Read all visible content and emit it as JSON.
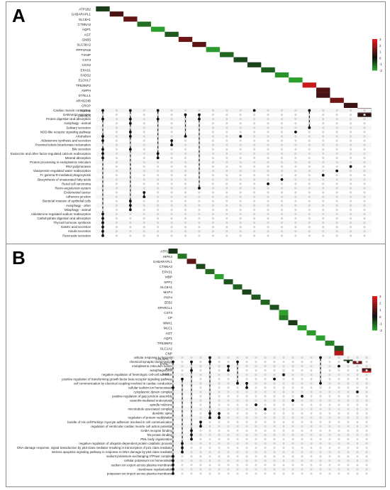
{
  "colors": {
    "high": "#e41a1c",
    "mid": "#111111",
    "low": "#2ca02c",
    "dot_off": "#d3d3d3",
    "dot_on": "#111111",
    "band": "#f4f4f4"
  },
  "legend": {
    "ticks": [
      "3",
      "2",
      "1",
      "0",
      "-1",
      "-2"
    ]
  },
  "chart_data": [
    {
      "type": "heatmap",
      "panel_label": "A",
      "legend_ticks": [
        3,
        2,
        1,
        0,
        -1,
        -2
      ],
      "genes": [
        "ATP1B2",
        "GABARAPL1",
        "SLC8A1",
        "CTNNA3",
        "AQP1",
        "AGT",
        "GNB5",
        "SLC38A2",
        "PPP1R1B",
        "TXNIP",
        "CST3",
        "COX2",
        "EPAS1",
        "FADS2",
        "ELOVL7",
        "TP53INP2",
        "AMPH",
        "DYNLL1",
        "ARHGDIB",
        "CRCP",
        "HSPH1",
        "DNAJC5"
      ],
      "heat_values": [
        -0.6,
        0.8,
        1.2,
        -1.3,
        -2.2,
        -1.0,
        1.3,
        1.1,
        -1.9,
        -1.2,
        -0.8,
        -0.7,
        -1.1,
        -1.8,
        -2.0,
        2.6,
        0.9,
        0.7,
        1.4,
        0.6,
        0.5,
        0.4
      ],
      "heat_columns": [
        0,
        1,
        2,
        3,
        4,
        5,
        6,
        7,
        8,
        9,
        10,
        11,
        12,
        13,
        14,
        15,
        16,
        16,
        17,
        18,
        19,
        19
      ],
      "terms": [
        "Cardiac muscle contraction",
        "GABAergic synapse",
        "Protein digestion and absorption",
        "Autophagy - animal",
        "Salivary secretion",
        "NOD-like receptor signaling pathway",
        "Alcoholism",
        "Aldosterone synthesis and secretion",
        "Proximal tubule bicarbonate reclamation",
        "Bile secretion",
        "Endocrine and other factor-regulated calcium reabsorption",
        "Mineral absorption",
        "Protein processing in endoplasmic reticulum",
        "RNA polymerases",
        "Vasopressin-regulated water reabsorption",
        "Fc gamma R-mediated phagocytosis",
        "Biosynthesis of unsaturated fatty acids",
        "Renal cell carcinoma",
        "Renin-angiotensin system",
        "Endometrial cancer",
        "Adherens junction",
        "Bacterial invasion of epithelial cells",
        "Autophagy - other",
        "Mitophagy - animal",
        "Aldosterone-regulated sodium reabsorption",
        "Carbohydrate digestion and absorption",
        "Thyroid hormone synthesis",
        "Gastric acid secretion",
        "Insulin secretion",
        "Pancreatic secretion"
      ],
      "n_columns": 20,
      "membership": [
        [
          0,
          0
        ],
        [
          0,
          2
        ],
        [
          0,
          4
        ],
        [
          0,
          11
        ],
        [
          0,
          15
        ],
        [
          1,
          6
        ],
        [
          1,
          7
        ],
        [
          2,
          0
        ],
        [
          2,
          2
        ],
        [
          2,
          4
        ],
        [
          2,
          7
        ],
        [
          3,
          2
        ],
        [
          3,
          20
        ],
        [
          4,
          15
        ],
        [
          5,
          2
        ],
        [
          5,
          14
        ],
        [
          6,
          0
        ],
        [
          6,
          2
        ],
        [
          6,
          6
        ],
        [
          6,
          10
        ],
        [
          7,
          0
        ],
        [
          7,
          5
        ],
        [
          8,
          5
        ],
        [
          9,
          0
        ],
        [
          9,
          2
        ],
        [
          10,
          0
        ],
        [
          10,
          4
        ],
        [
          11,
          0
        ],
        [
          11,
          4
        ],
        [
          12,
          20
        ],
        [
          13,
          18
        ],
        [
          14,
          17
        ],
        [
          15,
          16
        ],
        [
          16,
          13
        ],
        [
          17,
          12
        ],
        [
          18,
          7
        ],
        [
          19,
          3
        ],
        [
          20,
          3
        ],
        [
          21,
          2
        ],
        [
          22,
          2
        ],
        [
          23,
          2
        ],
        [
          24,
          0
        ],
        [
          25,
          0
        ],
        [
          26,
          0
        ],
        [
          27,
          0
        ],
        [
          28,
          0
        ],
        [
          29,
          0
        ]
      ]
    },
    {
      "type": "heatmap",
      "panel_label": "B",
      "legend_ticks": [
        3,
        2,
        1,
        0,
        -1,
        -2
      ],
      "genes": [
        "ATP1B2",
        "HIPK2",
        "GABARAPL1",
        "CTNNA3",
        "EPAS1",
        "MBP",
        "SPP1",
        "SLC8A1",
        "MAP4",
        "PKP4",
        "ZEB2",
        "SPARCL1",
        "CST3",
        "CP",
        "WNK1",
        "MLC1",
        "AGT",
        "AQP1",
        "TP53INP2",
        "SLC1A2",
        "CNP",
        "COLGALT1",
        "DYNLL1",
        "BSN",
        "AMPH"
      ],
      "heat_values": [
        -0.5,
        -1.4,
        1.1,
        -0.8,
        -1.3,
        -2.2,
        -0.9,
        -1.1,
        -0.7,
        -1.0,
        -1.2,
        -0.9,
        -2.1,
        -1.5,
        -0.6,
        -2.1,
        -1.9,
        -2.2,
        -1.6,
        -0.9,
        2.3,
        -0.8,
        1.3,
        0.8,
        2.8
      ],
      "heat_columns": [
        0,
        1,
        2,
        3,
        4,
        5,
        6,
        7,
        8,
        9,
        10,
        11,
        12,
        12,
        13,
        14,
        15,
        16,
        17,
        18,
        18,
        19,
        20,
        21,
        21
      ],
      "terms": [
        "cellular response to hypoxia",
        "chemical synaptic transmission",
        "endoplasmic reticulum lumen",
        "autophagosome",
        "negative regulation of heterotypic cell-cell adhesion",
        "positive regulation of transforming growth factor beta receptor signaling pathway",
        "cell communication by electrical coupling involved in cardiac conduction",
        "cellular sodium ion homeostasis",
        "cytoplasmic dynein complex",
        "positive regulation of gap junction assembly",
        "caveolin-mediated endocytosis",
        "spindle midzone",
        "microtubule associated complex",
        "dendritic spine",
        "regulation of protein neddylation",
        "bundle of His cell-Purkinje myocyte adhesion involved in cell communication",
        "regulation of ventricular cardiac muscle cell action potential",
        "GABA receptor binding",
        "Tat protein binding",
        "PML body organization",
        "negative regulation of ubiquitin-dependent protein catabolic process",
        "DNA damage response, signal transduction by p53 class mediator resulting in transcription of p21 class mediator",
        "intrinsic apoptotic signaling pathway in response to DNA damage by p53 class mediator",
        "sodium:potassium-exchanging ATPase complex",
        "cellular potassium ion homeostasis",
        "sodium ion export across plasma membrane",
        "membrane repolarization",
        "potassium ion import across plasma membrane"
      ],
      "n_columns": 22,
      "membership": [
        [
          0,
          4
        ],
        [
          0,
          16
        ],
        [
          1,
          0
        ],
        [
          1,
          2
        ],
        [
          1,
          4
        ],
        [
          1,
          7
        ],
        [
          1,
          19
        ],
        [
          2,
          6
        ],
        [
          2,
          18
        ],
        [
          3,
          2
        ],
        [
          3,
          6
        ],
        [
          4,
          12
        ],
        [
          5,
          1
        ],
        [
          5,
          11
        ],
        [
          6,
          7
        ],
        [
          6,
          8
        ],
        [
          6,
          16
        ],
        [
          7,
          0
        ],
        [
          7,
          8
        ],
        [
          8,
          20
        ],
        [
          9,
          14
        ],
        [
          10,
          13
        ],
        [
          11,
          9
        ],
        [
          12,
          10
        ],
        [
          13,
          4
        ],
        [
          13,
          5
        ],
        [
          14,
          4
        ],
        [
          14,
          5
        ],
        [
          15,
          3
        ],
        [
          16,
          3
        ],
        [
          17,
          2
        ],
        [
          18,
          2
        ],
        [
          19,
          2
        ],
        [
          20,
          1
        ],
        [
          21,
          1
        ],
        [
          22,
          1
        ],
        [
          23,
          0
        ],
        [
          24,
          0
        ],
        [
          25,
          0
        ],
        [
          26,
          0
        ],
        [
          27,
          0
        ]
      ]
    }
  ]
}
